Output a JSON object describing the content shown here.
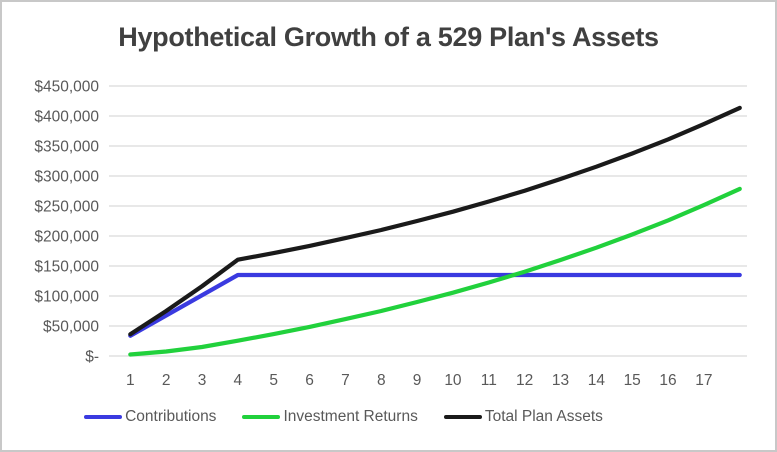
{
  "window": {
    "background": "#FFFFFF",
    "border_color": "#C8C8C8"
  },
  "chart": {
    "title": "Hypothetical Growth of a 529 Plan's Assets",
    "title_color": "#404040",
    "legend": [
      {
        "label": "Contributions",
        "color": "#3A3AE0"
      },
      {
        "label": "Investment Returns",
        "color": "#21D13C"
      },
      {
        "label": "Total Plan Assets",
        "color": "#1A1A1A"
      }
    ]
  },
  "chart_data": {
    "type": "line",
    "title": "Hypothetical Growth of a 529 Plan's Assets",
    "categories": [
      "1",
      "2",
      "3",
      "4",
      "5",
      "6",
      "7",
      "8",
      "9",
      "10",
      "11",
      "12",
      "13",
      "14",
      "15",
      "16",
      "17",
      ""
    ],
    "series": [
      {
        "name": "Contributions",
        "color": "#3A3AE0",
        "values": [
          33750,
          67500,
          101250,
          135000,
          135000,
          135000,
          135000,
          135000,
          135000,
          135000,
          135000,
          135000,
          135000,
          135000,
          135000,
          135000,
          135000,
          135000
        ]
      },
      {
        "name": "Investment Returns",
        "color": "#21D13C",
        "values": [
          2500,
          7500,
          15000,
          25500,
          36500,
          48500,
          61500,
          75000,
          90000,
          105500,
          122500,
          140500,
          160000,
          180500,
          202500,
          226000,
          251500,
          278500
        ]
      },
      {
        "name": "Total Plan Assets",
        "color": "#1A1A1A",
        "values": [
          36250,
          75000,
          116250,
          160500,
          171500,
          183500,
          196500,
          210000,
          225000,
          240500,
          257500,
          275500,
          295000,
          315500,
          337500,
          361000,
          386500,
          413500
        ]
      }
    ],
    "xlabel": "",
    "ylabel": "",
    "ylim": [
      0,
      450000
    ],
    "y_ticks": [
      0,
      50000,
      100000,
      150000,
      200000,
      250000,
      300000,
      350000,
      400000,
      450000
    ],
    "y_tick_labels": [
      "$-",
      "$50,000",
      "$100,000",
      "$150,000",
      "$200,000",
      "$250,000",
      "$300,000",
      "$350,000",
      "$400,000",
      "$450,000"
    ],
    "grid": "horizontal",
    "grid_color": "#D9D9D9",
    "axis_label_color": "#595959",
    "legend_position": "bottom"
  }
}
